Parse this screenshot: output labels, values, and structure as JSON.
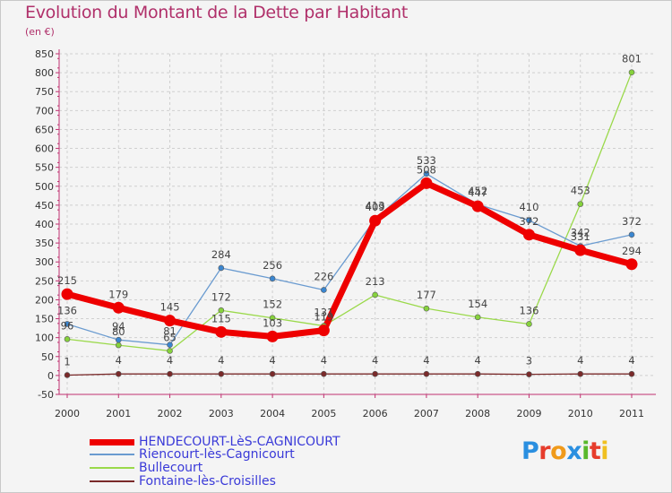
{
  "title": "Evolution du Montant de la Dette par Habitant",
  "unit": "(en €)",
  "logo": [
    "P",
    "r",
    "o",
    "x",
    "i",
    "t",
    "i"
  ],
  "logo_colors": [
    "#2a8fe0",
    "#e63c2c",
    "#f09a1a",
    "#2a8fe0",
    "#58b82c",
    "#e63c2c",
    "#f0c020"
  ],
  "chart_data": {
    "type": "line",
    "title": "Evolution du Montant de la Dette par Habitant",
    "ylabel": "(en €)",
    "xlabel": "",
    "x": [
      "2000",
      "2001",
      "2002",
      "2003",
      "2004",
      "2005",
      "2006",
      "2007",
      "2008",
      "2009",
      "2010",
      "2011"
    ],
    "ylim": [
      -50,
      850
    ],
    "yticks": [
      -50,
      0,
      50,
      100,
      150,
      200,
      250,
      300,
      350,
      400,
      450,
      500,
      550,
      600,
      650,
      700,
      750,
      800,
      850
    ],
    "grid": true,
    "legend_position": "bottom-left",
    "series": [
      {
        "name": "HENDECOURT-LèS-CAGNICOURT",
        "color": "#ee0000",
        "width": 7,
        "values": [
          215,
          179,
          145,
          115,
          103,
          119,
          409,
          508,
          447,
          372,
          331,
          294
        ]
      },
      {
        "name": "Riencourt-lès-Cagnicourt",
        "color": "#6a9bd0",
        "width": 1.3,
        "values": [
          136,
          94,
          81,
          284,
          256,
          226,
          413,
          533,
          452,
          410,
          342,
          372
        ]
      },
      {
        "name": "Bullecourt",
        "color": "#9ad94a",
        "width": 1.3,
        "values": [
          96,
          80,
          65,
          172,
          152,
          131,
          213,
          177,
          154,
          136,
          453,
          801
        ]
      },
      {
        "name": "Fontaine-lès-Croisilles",
        "color": "#7a2a2a",
        "width": 1.3,
        "values": [
          1,
          4,
          4,
          4,
          4,
          4,
          4,
          4,
          4,
          3,
          4,
          4
        ]
      }
    ],
    "point_colors": [
      "#ee0000",
      "#3a86d0",
      "#86d23c",
      "#7a2a2a"
    ]
  }
}
